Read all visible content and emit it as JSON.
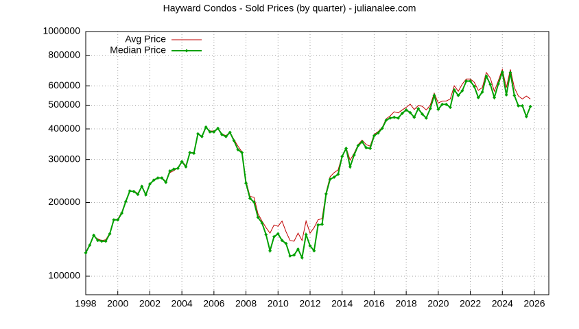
{
  "chart_data": {
    "type": "line",
    "title": "Hayward Condos - Sold Prices (by quarter) - julianalee.com",
    "x": [
      1998,
      1998.25,
      1998.5,
      1998.75,
      1999,
      1999.25,
      1999.5,
      1999.75,
      2000,
      2000.25,
      2000.5,
      2000.75,
      2001,
      2001.25,
      2001.5,
      2001.75,
      2002,
      2002.25,
      2002.5,
      2002.75,
      2003,
      2003.25,
      2003.5,
      2003.75,
      2004,
      2004.25,
      2004.5,
      2004.75,
      2005,
      2005.25,
      2005.5,
      2005.75,
      2006,
      2006.25,
      2006.5,
      2006.75,
      2007,
      2007.25,
      2007.5,
      2007.75,
      2008,
      2008.25,
      2008.5,
      2008.75,
      2009,
      2009.25,
      2009.5,
      2009.75,
      2010,
      2010.25,
      2010.5,
      2010.75,
      2011,
      2011.25,
      2011.5,
      2011.75,
      2012,
      2012.25,
      2012.5,
      2012.75,
      2013,
      2013.25,
      2013.5,
      2013.75,
      2014,
      2014.25,
      2014.5,
      2014.75,
      2015,
      2015.25,
      2015.5,
      2015.75,
      2016,
      2016.25,
      2016.5,
      2016.75,
      2017,
      2017.25,
      2017.5,
      2017.75,
      2018,
      2018.25,
      2018.5,
      2018.75,
      2019,
      2019.25,
      2019.5,
      2019.75,
      2020,
      2020.25,
      2020.5,
      2020.75,
      2021,
      2021.25,
      2021.5,
      2021.75,
      2022,
      2022.25,
      2022.5,
      2022.75,
      2023,
      2023.25,
      2023.5,
      2023.75,
      2024,
      2024.25,
      2024.5,
      2024.75,
      2025,
      2025.25,
      2025.5,
      2025.75
    ],
    "series": [
      {
        "name": "Avg Price",
        "color": "#c00000",
        "values": [
          125000,
          135000,
          146000,
          142000,
          140000,
          141000,
          150000,
          170000,
          171000,
          183000,
          203000,
          223000,
          223000,
          218000,
          232000,
          217000,
          238000,
          248000,
          253000,
          253000,
          244000,
          265000,
          270000,
          278000,
          295000,
          283000,
          320000,
          320000,
          380000,
          374000,
          405000,
          392000,
          392000,
          402000,
          382000,
          375000,
          388000,
          362000,
          340000,
          322000,
          245000,
          212000,
          210000,
          180000,
          168000,
          158000,
          150000,
          162000,
          160000,
          168000,
          152000,
          140000,
          139000,
          150000,
          140000,
          168000,
          150000,
          158000,
          170000,
          172000,
          220000,
          255000,
          265000,
          272000,
          310000,
          335000,
          298000,
          318000,
          345000,
          360000,
          345000,
          340000,
          380000,
          390000,
          405000,
          440000,
          452000,
          470000,
          465000,
          478000,
          490000,
          505000,
          480000,
          498000,
          495000,
          478000,
          500000,
          560000,
          510000,
          520000,
          520000,
          530000,
          600000,
          570000,
          610000,
          640000,
          640000,
          620000,
          575000,
          590000,
          680000,
          645000,
          570000,
          630000,
          700000,
          590000,
          700000,
          590000,
          545000,
          530000,
          545000,
          530000
        ]
      },
      {
        "name": "Median Price",
        "color": "#00a000",
        "values": [
          124600,
          134000,
          147000,
          140000,
          139000,
          139000,
          149000,
          170000,
          170000,
          181000,
          202000,
          223000,
          222000,
          216000,
          233000,
          215000,
          238000,
          247000,
          252000,
          252000,
          242000,
          269000,
          274000,
          276000,
          294000,
          280000,
          320000,
          318000,
          382000,
          372000,
          407000,
          389000,
          389000,
          402000,
          379000,
          372000,
          387000,
          358000,
          329000,
          320000,
          240000,
          208000,
          201000,
          174000,
          165000,
          148000,
          127000,
          145000,
          149000,
          140000,
          136000,
          121000,
          122000,
          129000,
          119000,
          148000,
          133000,
          127000,
          162000,
          163000,
          217000,
          249000,
          254000,
          261000,
          309000,
          333000,
          280000,
          313000,
          342000,
          354000,
          335000,
          333000,
          375000,
          385000,
          402000,
          434000,
          443000,
          446000,
          443000,
          463000,
          478000,
          466000,
          446000,
          484000,
          460000,
          443000,
          484000,
          548000,
          481000,
          504000,
          504000,
          490000,
          577000,
          548000,
          573000,
          627000,
          627000,
          596000,
          537000,
          566000,
          657000,
          608000,
          537000,
          611000,
          683000,
          551000,
          679000,
          548000,
          497000,
          497000,
          449000,
          494000
        ]
      }
    ],
    "xlim": [
      1998,
      2026.9
    ],
    "xticks": [
      1998,
      2000,
      2002,
      2004,
      2006,
      2008,
      2010,
      2012,
      2014,
      2016,
      2018,
      2020,
      2022,
      2024,
      2026
    ],
    "ylim": [
      84000,
      1000000
    ],
    "yticks": [
      100000,
      200000,
      300000,
      400000,
      500000,
      600000,
      800000,
      1000000
    ],
    "ylog": true,
    "grid": true,
    "legend": "top-left"
  }
}
